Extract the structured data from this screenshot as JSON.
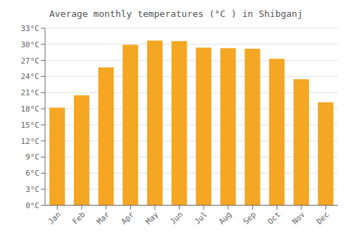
{
  "chart_data": {
    "type": "bar",
    "title": "Average monthly temperatures (°C ) in Shibganj",
    "categories": [
      "Jan",
      "Feb",
      "Mar",
      "Apr",
      "May",
      "Jun",
      "Jul",
      "Aug",
      "Sep",
      "Oct",
      "Nov",
      "Dec"
    ],
    "values": [
      18.2,
      20.5,
      25.7,
      29.9,
      30.7,
      30.6,
      29.4,
      29.3,
      29.2,
      27.3,
      23.5,
      19.2
    ],
    "color": "#F5A623",
    "ylim": [
      0,
      33
    ],
    "yticks": [
      {
        "value": 0,
        "label": "0°C"
      },
      {
        "value": 3,
        "label": "3°C"
      },
      {
        "value": 6,
        "label": "6°C"
      },
      {
        "value": 9,
        "label": "9°C"
      },
      {
        "value": 12,
        "label": "12°C"
      },
      {
        "value": 15,
        "label": "15°C"
      },
      {
        "value": 18,
        "label": "18°C"
      },
      {
        "value": 21,
        "label": "21°C"
      },
      {
        "value": 24,
        "label": "24°C"
      },
      {
        "value": 27,
        "label": "27°C"
      },
      {
        "value": 30,
        "label": "30°C"
      },
      {
        "value": 33,
        "label": "33°C"
      }
    ],
    "grid": true
  }
}
